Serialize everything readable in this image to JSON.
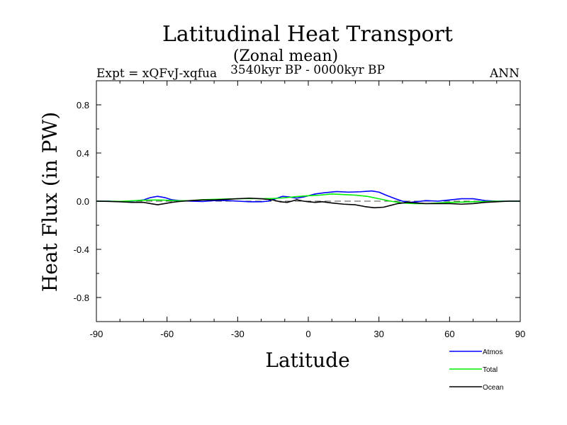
{
  "chart_data": {
    "type": "line",
    "title": "Latitudinal Heat Transport",
    "subtitle": "(Zonal mean)",
    "left_label": "Expt = xQFvJ-xqfua",
    "center_label": "3540kyr BP - 0000kyr BP",
    "right_label": "ANN",
    "xlabel": "Latitude",
    "ylabel": "Heat Flux (in PW)",
    "xlim": [
      -90,
      90
    ],
    "ylim": [
      -1.0,
      1.0
    ],
    "x_ticks": [
      -90,
      -60,
      -30,
      0,
      30,
      60,
      90
    ],
    "x_tick_labels": [
      "-90",
      "-60",
      "-30",
      "0",
      "30",
      "60",
      "90"
    ],
    "y_ticks": [
      0.8,
      0.4,
      0.0,
      -0.4,
      -0.8
    ],
    "y_tick_labels": [
      "0.8",
      "0.4",
      "0.0",
      "-0.4",
      "-0.8"
    ],
    "zero_line": "dashed",
    "legend_position": "bottom-right",
    "series": [
      {
        "name": "Atmos",
        "color": "#0000ff",
        "points": [
          [
            -90,
            0.0
          ],
          [
            -85,
            0.0
          ],
          [
            -80,
            -0.005
          ],
          [
            -75,
            0.0
          ],
          [
            -70,
            0.01
          ],
          [
            -67,
            0.03
          ],
          [
            -64,
            0.04
          ],
          [
            -61,
            0.03
          ],
          [
            -58,
            0.012
          ],
          [
            -55,
            0.005
          ],
          [
            -50,
            0.0
          ],
          [
            -45,
            -0.003
          ],
          [
            -40,
            0.005
          ],
          [
            -35,
            0.006
          ],
          [
            -30,
            0.0
          ],
          [
            -25,
            -0.005
          ],
          [
            -20,
            -0.005
          ],
          [
            -17,
            0.0
          ],
          [
            -14,
            0.02
          ],
          [
            -11,
            0.04
          ],
          [
            -8,
            0.035
          ],
          [
            -5,
            0.025
          ],
          [
            -2,
            0.035
          ],
          [
            0,
            0.045
          ],
          [
            3,
            0.06
          ],
          [
            7,
            0.07
          ],
          [
            12,
            0.08
          ],
          [
            17,
            0.075
          ],
          [
            22,
            0.078
          ],
          [
            27,
            0.085
          ],
          [
            30,
            0.075
          ],
          [
            33,
            0.05
          ],
          [
            37,
            0.02
          ],
          [
            40,
            0.0
          ],
          [
            43,
            -0.01
          ],
          [
            46,
            -0.005
          ],
          [
            50,
            0.005
          ],
          [
            55,
            0.0
          ],
          [
            60,
            0.01
          ],
          [
            65,
            0.02
          ],
          [
            70,
            0.02
          ],
          [
            75,
            0.005
          ],
          [
            80,
            0.0
          ],
          [
            85,
            0.0
          ],
          [
            90,
            0.0
          ]
        ]
      },
      {
        "name": "Total",
        "color": "#00ee00",
        "points": [
          [
            -90,
            0.0
          ],
          [
            -85,
            0.0
          ],
          [
            -80,
            -0.002
          ],
          [
            -75,
            0.003
          ],
          [
            -70,
            0.008
          ],
          [
            -65,
            0.01
          ],
          [
            -60,
            0.008
          ],
          [
            -55,
            0.003
          ],
          [
            -50,
            0.005
          ],
          [
            -45,
            0.012
          ],
          [
            -40,
            0.015
          ],
          [
            -35,
            0.018
          ],
          [
            -30,
            0.02
          ],
          [
            -25,
            0.022
          ],
          [
            -20,
            0.02
          ],
          [
            -15,
            0.022
          ],
          [
            -10,
            0.028
          ],
          [
            -5,
            0.038
          ],
          [
            0,
            0.045
          ],
          [
            5,
            0.05
          ],
          [
            10,
            0.06
          ],
          [
            15,
            0.055
          ],
          [
            20,
            0.05
          ],
          [
            25,
            0.04
          ],
          [
            30,
            0.02
          ],
          [
            35,
            0.0
          ],
          [
            40,
            -0.015
          ],
          [
            45,
            -0.02
          ],
          [
            50,
            -0.02
          ],
          [
            55,
            -0.015
          ],
          [
            60,
            -0.01
          ],
          [
            65,
            -0.008
          ],
          [
            70,
            -0.005
          ],
          [
            75,
            -0.003
          ],
          [
            80,
            0.0
          ],
          [
            85,
            0.0
          ],
          [
            90,
            0.0
          ]
        ]
      },
      {
        "name": "Ocean",
        "color": "#000000",
        "points": [
          [
            -90,
            0.0
          ],
          [
            -85,
            -0.002
          ],
          [
            -80,
            -0.005
          ],
          [
            -75,
            -0.01
          ],
          [
            -70,
            -0.01
          ],
          [
            -67,
            -0.02
          ],
          [
            -64,
            -0.03
          ],
          [
            -61,
            -0.02
          ],
          [
            -58,
            -0.01
          ],
          [
            -55,
            -0.003
          ],
          [
            -50,
            0.005
          ],
          [
            -45,
            0.01
          ],
          [
            -40,
            0.01
          ],
          [
            -35,
            0.015
          ],
          [
            -30,
            0.02
          ],
          [
            -25,
            0.025
          ],
          [
            -20,
            0.02
          ],
          [
            -15,
            0.01
          ],
          [
            -12,
            -0.005
          ],
          [
            -9,
            -0.01
          ],
          [
            -7,
            0.0
          ],
          [
            -5,
            0.012
          ],
          [
            -2,
            0.0
          ],
          [
            0,
            -0.005
          ],
          [
            3,
            -0.01
          ],
          [
            6,
            -0.005
          ],
          [
            10,
            -0.015
          ],
          [
            15,
            -0.025
          ],
          [
            20,
            -0.03
          ],
          [
            24,
            -0.045
          ],
          [
            28,
            -0.055
          ],
          [
            32,
            -0.05
          ],
          [
            35,
            -0.035
          ],
          [
            38,
            -0.02
          ],
          [
            42,
            -0.01
          ],
          [
            46,
            -0.015
          ],
          [
            50,
            -0.02
          ],
          [
            55,
            -0.02
          ],
          [
            60,
            -0.02
          ],
          [
            65,
            -0.025
          ],
          [
            70,
            -0.02
          ],
          [
            75,
            -0.01
          ],
          [
            80,
            -0.005
          ],
          [
            85,
            0.0
          ],
          [
            90,
            0.0
          ]
        ]
      }
    ]
  }
}
